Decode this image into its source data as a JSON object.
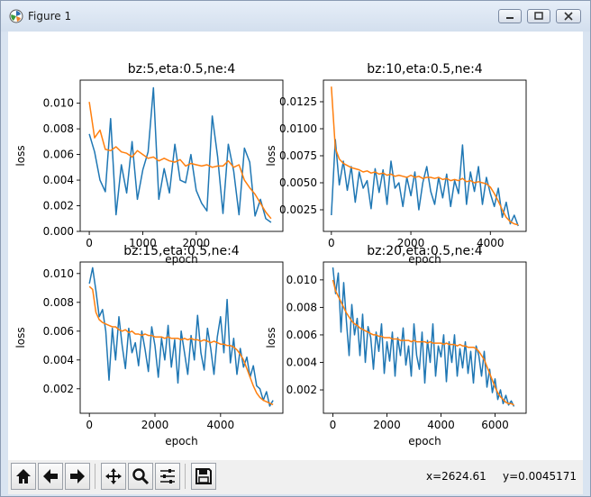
{
  "window": {
    "title": "Figure 1"
  },
  "toolbar": {
    "x_readout": "x=2624.61",
    "y_readout": "y=0.0045171"
  },
  "colors": {
    "series_blue": "#1f77b4",
    "series_orange": "#ff7f0e"
  },
  "icons": [
    "home-icon",
    "back-arrow-icon",
    "forward-arrow-icon",
    "pan-icon",
    "zoom-icon",
    "subplots-icon",
    "save-icon"
  ],
  "chart_data": [
    {
      "type": "line",
      "title": "bz:5,eta:0.5,ne:4",
      "xlabel": "epoch",
      "ylabel": "loss",
      "xlim": [
        -170,
        3620
      ],
      "ylim": [
        0.0,
        0.0118
      ],
      "xticks": [
        0,
        1000,
        2000
      ],
      "xtick_labels": [
        "0",
        "1000",
        "2000"
      ],
      "yticks": [
        0.0,
        0.002,
        0.004,
        0.006,
        0.008,
        0.01
      ],
      "ytick_labels": [
        "0.000",
        "0.002",
        "0.004",
        "0.006",
        "0.008",
        "0.010"
      ],
      "series": [
        {
          "x": [
            0,
            100,
            200,
            300,
            400,
            500,
            600,
            700,
            800,
            900,
            1000,
            1100,
            1200,
            1300,
            1400,
            1500,
            1600,
            1700,
            1800,
            1900,
            2000,
            2100,
            2200,
            2300,
            2400,
            2500,
            2600,
            2700,
            2800,
            2900,
            3000,
            3100,
            3200,
            3300,
            3400
          ],
          "values": [
            0.0076,
            0.0062,
            0.004,
            0.0031,
            0.0088,
            0.0013,
            0.0052,
            0.003,
            0.007,
            0.0025,
            0.0048,
            0.0062,
            0.0112,
            0.0025,
            0.0049,
            0.003,
            0.0068,
            0.004,
            0.0038,
            0.006,
            0.0032,
            0.0022,
            0.0016,
            0.009,
            0.0058,
            0.0014,
            0.0068,
            0.0047,
            0.0013,
            0.0065,
            0.0054,
            0.0012,
            0.0025,
            0.001,
            0.0007
          ]
        },
        {
          "x": [
            0,
            100,
            200,
            300,
            400,
            500,
            600,
            700,
            800,
            900,
            1000,
            1100,
            1200,
            1300,
            1400,
            1500,
            1600,
            1700,
            1800,
            1900,
            2000,
            2100,
            2200,
            2300,
            2400,
            2500,
            2600,
            2700,
            2800,
            2900,
            3000,
            3100,
            3200,
            3300,
            3400
          ],
          "values": [
            0.0101,
            0.0073,
            0.0079,
            0.0064,
            0.0063,
            0.0066,
            0.0062,
            0.0061,
            0.0058,
            0.0063,
            0.006,
            0.0057,
            0.0058,
            0.0055,
            0.0057,
            0.0055,
            0.0054,
            0.0056,
            0.0051,
            0.0053,
            0.0052,
            0.0051,
            0.0052,
            0.005,
            0.0051,
            0.0051,
            0.0055,
            0.005,
            0.0052,
            0.004,
            0.0034,
            0.0029,
            0.0022,
            0.0015,
            0.001
          ]
        }
      ]
    },
    {
      "type": "line",
      "title": "bz:10,eta:0.5,ne:4",
      "xlabel": "epoch",
      "ylabel": "loss",
      "xlim": [
        -200,
        4900
      ],
      "ylim": [
        0.0005,
        0.0145
      ],
      "xticks": [
        0,
        2000,
        4000
      ],
      "xtick_labels": [
        "0",
        "2000",
        "4000"
      ],
      "yticks": [
        0.0025,
        0.005,
        0.0075,
        0.01,
        0.0125
      ],
      "ytick_labels": [
        "0.0025",
        "0.0050",
        "0.0075",
        "0.0100",
        "0.0125"
      ],
      "series": [
        {
          "x": [
            0,
            100,
            200,
            300,
            400,
            500,
            600,
            700,
            800,
            900,
            1000,
            1100,
            1200,
            1300,
            1400,
            1500,
            1600,
            1700,
            1800,
            1900,
            2000,
            2100,
            2200,
            2300,
            2400,
            2500,
            2600,
            2700,
            2800,
            2900,
            3000,
            3100,
            3200,
            3300,
            3400,
            3500,
            3600,
            3700,
            3800,
            3900,
            4000,
            4100,
            4200,
            4300,
            4400,
            4500,
            4600,
            4700
          ],
          "values": [
            0.002,
            0.009,
            0.0048,
            0.007,
            0.0043,
            0.0065,
            0.0032,
            0.006,
            0.0045,
            0.0052,
            0.0026,
            0.0063,
            0.0041,
            0.0062,
            0.003,
            0.007,
            0.0045,
            0.005,
            0.0028,
            0.0055,
            0.0038,
            0.006,
            0.0025,
            0.005,
            0.0065,
            0.0042,
            0.003,
            0.0055,
            0.0036,
            0.0058,
            0.0028,
            0.0052,
            0.004,
            0.0085,
            0.003,
            0.006,
            0.0042,
            0.0065,
            0.003,
            0.0055,
            0.004,
            0.0028,
            0.0045,
            0.0018,
            0.0032,
            0.0012,
            0.002,
            0.001
          ]
        },
        {
          "x": [
            0,
            100,
            200,
            300,
            400,
            500,
            600,
            700,
            800,
            900,
            1000,
            1100,
            1200,
            1300,
            1400,
            1500,
            1600,
            1700,
            1800,
            1900,
            2000,
            2100,
            2200,
            2300,
            2400,
            2500,
            2600,
            2700,
            2800,
            2900,
            3000,
            3100,
            3200,
            3300,
            3400,
            3500,
            3600,
            3700,
            3800,
            3900,
            4000,
            4100,
            4200,
            4300,
            4400,
            4500,
            4600,
            4700
          ],
          "values": [
            0.0139,
            0.0082,
            0.0072,
            0.0068,
            0.0066,
            0.0064,
            0.0063,
            0.0062,
            0.006,
            0.0061,
            0.0059,
            0.006,
            0.0058,
            0.0059,
            0.0057,
            0.0058,
            0.0056,
            0.0057,
            0.0056,
            0.0055,
            0.0057,
            0.0055,
            0.0056,
            0.0054,
            0.0055,
            0.0055,
            0.0054,
            0.0055,
            0.0053,
            0.0054,
            0.0052,
            0.0053,
            0.0052,
            0.0054,
            0.0051,
            0.0052,
            0.005,
            0.0051,
            0.005,
            0.0049,
            0.0046,
            0.004,
            0.0033,
            0.0025,
            0.0018,
            0.0014,
            0.0012,
            0.0011
          ]
        }
      ]
    },
    {
      "type": "line",
      "title": "bz:15,eta:0.5,ne:4",
      "xlabel": "epoch",
      "ylabel": "loss",
      "xlim": [
        -280,
        5900
      ],
      "ylim": [
        0.0003,
        0.0108
      ],
      "xticks": [
        0,
        2000,
        4000
      ],
      "xtick_labels": [
        "0",
        "2000",
        "4000"
      ],
      "yticks": [
        0.002,
        0.004,
        0.006,
        0.008,
        0.01
      ],
      "ytick_labels": [
        "0.002",
        "0.004",
        "0.006",
        "0.008",
        "0.010"
      ],
      "series": [
        {
          "x": [
            0,
            100,
            200,
            300,
            400,
            500,
            600,
            700,
            800,
            900,
            1000,
            1100,
            1200,
            1300,
            1400,
            1500,
            1600,
            1700,
            1800,
            1900,
            2000,
            2100,
            2200,
            2300,
            2400,
            2500,
            2600,
            2700,
            2800,
            2900,
            3000,
            3100,
            3200,
            3300,
            3400,
            3500,
            3600,
            3700,
            3800,
            3900,
            4000,
            4100,
            4200,
            4300,
            4400,
            4500,
            4600,
            4700,
            4800,
            4900,
            5000,
            5100,
            5200,
            5300,
            5400,
            5500,
            5600
          ],
          "values": [
            0.0093,
            0.0104,
            0.0088,
            0.007,
            0.0075,
            0.006,
            0.0026,
            0.0062,
            0.004,
            0.007,
            0.005,
            0.0034,
            0.0062,
            0.0045,
            0.0052,
            0.0036,
            0.006,
            0.0047,
            0.0032,
            0.0063,
            0.005,
            0.0028,
            0.0055,
            0.004,
            0.0064,
            0.0035,
            0.0054,
            0.0024,
            0.006,
            0.0045,
            0.003,
            0.0057,
            0.004,
            0.0071,
            0.0045,
            0.0033,
            0.0062,
            0.0048,
            0.003,
            0.0056,
            0.007,
            0.0045,
            0.0082,
            0.0038,
            0.0055,
            0.003,
            0.0048,
            0.0035,
            0.0042,
            0.0028,
            0.0036,
            0.0022,
            0.002,
            0.0012,
            0.0018,
            0.0008,
            0.0012
          ]
        },
        {
          "x": [
            0,
            100,
            200,
            300,
            400,
            500,
            600,
            700,
            800,
            900,
            1000,
            1100,
            1200,
            1300,
            1400,
            1500,
            1600,
            1700,
            1800,
            1900,
            2000,
            2100,
            2200,
            2300,
            2400,
            2500,
            2600,
            2700,
            2800,
            2900,
            3000,
            3100,
            3200,
            3300,
            3400,
            3500,
            3600,
            3700,
            3800,
            3900,
            4000,
            4100,
            4200,
            4300,
            4400,
            4500,
            4600,
            4700,
            4800,
            4900,
            5000,
            5100,
            5200,
            5300,
            5400,
            5500,
            5600
          ],
          "values": [
            0.0091,
            0.0089,
            0.0073,
            0.0068,
            0.0066,
            0.0065,
            0.0064,
            0.0063,
            0.0063,
            0.0061,
            0.006,
            0.0061,
            0.0059,
            0.006,
            0.0058,
            0.0058,
            0.0057,
            0.0058,
            0.0057,
            0.0057,
            0.0056,
            0.0056,
            0.0056,
            0.0055,
            0.0056,
            0.0055,
            0.0055,
            0.0055,
            0.0054,
            0.0055,
            0.0054,
            0.0055,
            0.0054,
            0.0054,
            0.0053,
            0.0054,
            0.0053,
            0.0052,
            0.0053,
            0.0052,
            0.0051,
            0.0051,
            0.005,
            0.005,
            0.0049,
            0.0047,
            0.0044,
            0.004,
            0.0034,
            0.0028,
            0.0022,
            0.0017,
            0.0014,
            0.0012,
            0.0011,
            0.001,
            0.0009
          ]
        }
      ]
    },
    {
      "type": "line",
      "title": "bz:20,eta:0.5,ne:4",
      "xlabel": "epoch",
      "ylabel": "loss",
      "xlim": [
        -350,
        7150
      ],
      "ylim": [
        0.0003,
        0.0113
      ],
      "xticks": [
        0,
        2000,
        4000,
        6000
      ],
      "xtick_labels": [
        "0",
        "2000",
        "4000",
        "6000"
      ],
      "yticks": [
        0.002,
        0.004,
        0.006,
        0.008,
        0.01
      ],
      "ytick_labels": [
        "0.002",
        "0.004",
        "0.006",
        "0.008",
        "0.010"
      ],
      "series": [
        {
          "x": [
            0,
            100,
            200,
            300,
            400,
            500,
            600,
            700,
            800,
            900,
            1000,
            1100,
            1200,
            1300,
            1400,
            1500,
            1600,
            1700,
            1800,
            1900,
            2000,
            2100,
            2200,
            2300,
            2400,
            2500,
            2600,
            2700,
            2800,
            2900,
            3000,
            3100,
            3200,
            3300,
            3400,
            3500,
            3600,
            3700,
            3800,
            3900,
            4000,
            4100,
            4200,
            4300,
            4400,
            4500,
            4600,
            4700,
            4800,
            4900,
            5000,
            5100,
            5200,
            5300,
            5400,
            5500,
            5600,
            5700,
            5800,
            5900,
            6000,
            6100,
            6200,
            6300,
            6400,
            6500,
            6600,
            6700
          ],
          "values": [
            0.0109,
            0.009,
            0.0105,
            0.0062,
            0.0098,
            0.007,
            0.0045,
            0.0082,
            0.006,
            0.0072,
            0.0045,
            0.0075,
            0.004,
            0.0066,
            0.0058,
            0.0035,
            0.0062,
            0.0048,
            0.0068,
            0.0032,
            0.0055,
            0.0041,
            0.0062,
            0.003,
            0.0058,
            0.0045,
            0.0065,
            0.0038,
            0.0052,
            0.003,
            0.0068,
            0.0045,
            0.0035,
            0.0062,
            0.0025,
            0.0056,
            0.004,
            0.0068,
            0.003,
            0.0052,
            0.0044,
            0.006,
            0.0026,
            0.0055,
            0.004,
            0.006,
            0.003,
            0.005,
            0.0036,
            0.0055,
            0.0032,
            0.0048,
            0.0025,
            0.0052,
            0.0045,
            0.003,
            0.0048,
            0.0022,
            0.0035,
            0.0018,
            0.0028,
            0.0013,
            0.002,
            0.001,
            0.0016,
            0.0009,
            0.0012,
            0.0008
          ]
        },
        {
          "x": [
            0,
            100,
            200,
            300,
            400,
            500,
            600,
            700,
            800,
            900,
            1000,
            1100,
            1200,
            1300,
            1400,
            1500,
            1600,
            1700,
            1800,
            1900,
            2000,
            2100,
            2200,
            2300,
            2400,
            2500,
            2600,
            2700,
            2800,
            2900,
            3000,
            3100,
            3200,
            3300,
            3400,
            3500,
            3600,
            3700,
            3800,
            3900,
            4000,
            4100,
            4200,
            4300,
            4400,
            4500,
            4600,
            4700,
            4800,
            4900,
            5000,
            5100,
            5200,
            5300,
            5400,
            5500,
            5600,
            5700,
            5800,
            5900,
            6000,
            6100,
            6200,
            6300,
            6400,
            6500,
            6600,
            6700
          ],
          "values": [
            0.01,
            0.0092,
            0.0088,
            0.0084,
            0.008,
            0.0076,
            0.0073,
            0.007,
            0.0068,
            0.0067,
            0.0065,
            0.0064,
            0.0063,
            0.0062,
            0.0061,
            0.006,
            0.006,
            0.0059,
            0.0059,
            0.0058,
            0.0058,
            0.0058,
            0.0057,
            0.0057,
            0.0057,
            0.0056,
            0.0056,
            0.0056,
            0.0056,
            0.0055,
            0.0056,
            0.0055,
            0.0055,
            0.0055,
            0.0055,
            0.0054,
            0.0055,
            0.0054,
            0.0054,
            0.0054,
            0.0054,
            0.0053,
            0.0054,
            0.0053,
            0.0053,
            0.0053,
            0.0052,
            0.0053,
            0.0052,
            0.0052,
            0.0051,
            0.0051,
            0.0051,
            0.005,
            0.0048,
            0.0045,
            0.0042,
            0.0037,
            0.0032,
            0.0027,
            0.0022,
            0.0018,
            0.0015,
            0.0013,
            0.0011,
            0.001,
            0.001,
            0.0009
          ]
        }
      ]
    }
  ]
}
